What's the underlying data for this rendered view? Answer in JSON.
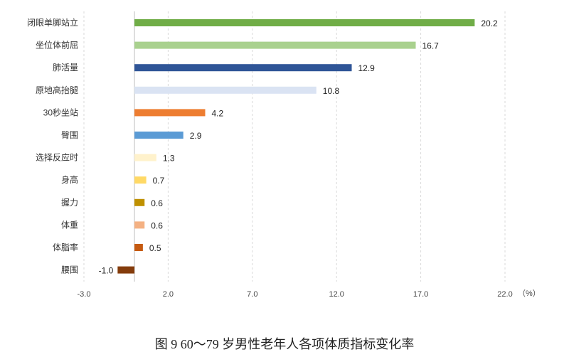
{
  "chart_data": {
    "type": "bar",
    "orientation": "horizontal",
    "categories": [
      "闭眼单脚站立",
      "坐位体前屈",
      "肺活量",
      "原地高抬腿",
      "30秒坐站",
      "臀围",
      "选择反应时",
      "身高",
      "握力",
      "体重",
      "体脂率",
      "腰围"
    ],
    "values": [
      20.2,
      16.7,
      12.9,
      10.8,
      4.2,
      2.9,
      1.3,
      0.7,
      0.6,
      0.6,
      0.5,
      -1.0
    ],
    "value_labels": [
      "20.2",
      "16.7",
      "12.9",
      "10.8",
      "4.2",
      "2.9",
      "1.3",
      "0.7",
      "0.6",
      "0.6",
      "0.5",
      "-1.0"
    ],
    "colors": [
      "#70AD47",
      "#A9D18E",
      "#2F5597",
      "#DAE3F3",
      "#ED7D31",
      "#5B9BD5",
      "#FFF2CC",
      "#FFD966",
      "#BF9000",
      "#F4B183",
      "#C55A11",
      "#843C0C"
    ],
    "xlim": [
      -3.0,
      22.0
    ],
    "xticks": [
      -3.0,
      2.0,
      7.0,
      12.0,
      17.0,
      22.0
    ],
    "xtick_labels": [
      "-3.0",
      "2.0",
      "7.0",
      "12.0",
      "17.0",
      "22.0"
    ],
    "unit": "（%）",
    "grid": "vertical dashed",
    "title": "图 9    60～79 岁男性老年人各项体质指标变化率"
  }
}
